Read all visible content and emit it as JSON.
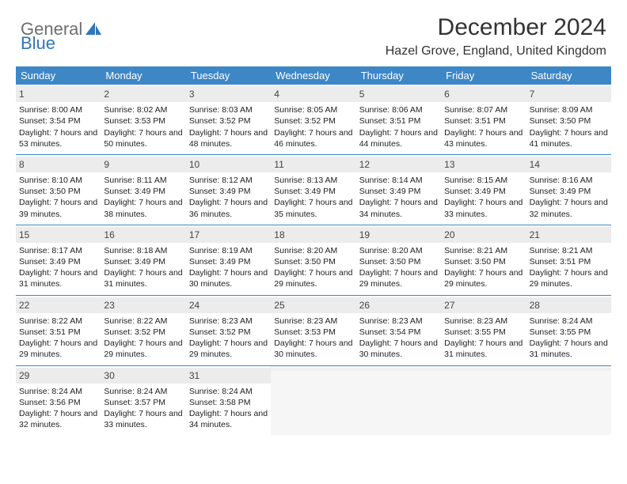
{
  "logo": {
    "text1": "General",
    "text2": "Blue"
  },
  "title": "December 2024",
  "location": "Hazel Grove, England, United Kingdom",
  "colors": {
    "header_bg": "#3d87c7",
    "header_text": "#ffffff",
    "daynum_bg": "#ececec",
    "border": "#3d87c7",
    "logo_gray": "#6e6e6e",
    "logo_blue": "#2f77b8"
  },
  "day_names": [
    "Sunday",
    "Monday",
    "Tuesday",
    "Wednesday",
    "Thursday",
    "Friday",
    "Saturday"
  ],
  "weeks": [
    [
      {
        "n": "1",
        "sr": "8:00 AM",
        "ss": "3:54 PM",
        "dl": "7 hours and 53 minutes."
      },
      {
        "n": "2",
        "sr": "8:02 AM",
        "ss": "3:53 PM",
        "dl": "7 hours and 50 minutes."
      },
      {
        "n": "3",
        "sr": "8:03 AM",
        "ss": "3:52 PM",
        "dl": "7 hours and 48 minutes."
      },
      {
        "n": "4",
        "sr": "8:05 AM",
        "ss": "3:52 PM",
        "dl": "7 hours and 46 minutes."
      },
      {
        "n": "5",
        "sr": "8:06 AM",
        "ss": "3:51 PM",
        "dl": "7 hours and 44 minutes."
      },
      {
        "n": "6",
        "sr": "8:07 AM",
        "ss": "3:51 PM",
        "dl": "7 hours and 43 minutes."
      },
      {
        "n": "7",
        "sr": "8:09 AM",
        "ss": "3:50 PM",
        "dl": "7 hours and 41 minutes."
      }
    ],
    [
      {
        "n": "8",
        "sr": "8:10 AM",
        "ss": "3:50 PM",
        "dl": "7 hours and 39 minutes."
      },
      {
        "n": "9",
        "sr": "8:11 AM",
        "ss": "3:49 PM",
        "dl": "7 hours and 38 minutes."
      },
      {
        "n": "10",
        "sr": "8:12 AM",
        "ss": "3:49 PM",
        "dl": "7 hours and 36 minutes."
      },
      {
        "n": "11",
        "sr": "8:13 AM",
        "ss": "3:49 PM",
        "dl": "7 hours and 35 minutes."
      },
      {
        "n": "12",
        "sr": "8:14 AM",
        "ss": "3:49 PM",
        "dl": "7 hours and 34 minutes."
      },
      {
        "n": "13",
        "sr": "8:15 AM",
        "ss": "3:49 PM",
        "dl": "7 hours and 33 minutes."
      },
      {
        "n": "14",
        "sr": "8:16 AM",
        "ss": "3:49 PM",
        "dl": "7 hours and 32 minutes."
      }
    ],
    [
      {
        "n": "15",
        "sr": "8:17 AM",
        "ss": "3:49 PM",
        "dl": "7 hours and 31 minutes."
      },
      {
        "n": "16",
        "sr": "8:18 AM",
        "ss": "3:49 PM",
        "dl": "7 hours and 31 minutes."
      },
      {
        "n": "17",
        "sr": "8:19 AM",
        "ss": "3:49 PM",
        "dl": "7 hours and 30 minutes."
      },
      {
        "n": "18",
        "sr": "8:20 AM",
        "ss": "3:50 PM",
        "dl": "7 hours and 29 minutes."
      },
      {
        "n": "19",
        "sr": "8:20 AM",
        "ss": "3:50 PM",
        "dl": "7 hours and 29 minutes."
      },
      {
        "n": "20",
        "sr": "8:21 AM",
        "ss": "3:50 PM",
        "dl": "7 hours and 29 minutes."
      },
      {
        "n": "21",
        "sr": "8:21 AM",
        "ss": "3:51 PM",
        "dl": "7 hours and 29 minutes."
      }
    ],
    [
      {
        "n": "22",
        "sr": "8:22 AM",
        "ss": "3:51 PM",
        "dl": "7 hours and 29 minutes."
      },
      {
        "n": "23",
        "sr": "8:22 AM",
        "ss": "3:52 PM",
        "dl": "7 hours and 29 minutes."
      },
      {
        "n": "24",
        "sr": "8:23 AM",
        "ss": "3:52 PM",
        "dl": "7 hours and 29 minutes."
      },
      {
        "n": "25",
        "sr": "8:23 AM",
        "ss": "3:53 PM",
        "dl": "7 hours and 30 minutes."
      },
      {
        "n": "26",
        "sr": "8:23 AM",
        "ss": "3:54 PM",
        "dl": "7 hours and 30 minutes."
      },
      {
        "n": "27",
        "sr": "8:23 AM",
        "ss": "3:55 PM",
        "dl": "7 hours and 31 minutes."
      },
      {
        "n": "28",
        "sr": "8:24 AM",
        "ss": "3:55 PM",
        "dl": "7 hours and 31 minutes."
      }
    ],
    [
      {
        "n": "29",
        "sr": "8:24 AM",
        "ss": "3:56 PM",
        "dl": "7 hours and 32 minutes."
      },
      {
        "n": "30",
        "sr": "8:24 AM",
        "ss": "3:57 PM",
        "dl": "7 hours and 33 minutes."
      },
      {
        "n": "31",
        "sr": "8:24 AM",
        "ss": "3:58 PM",
        "dl": "7 hours and 34 minutes."
      },
      {
        "empty": true
      },
      {
        "empty": true
      },
      {
        "empty": true
      },
      {
        "empty": true
      }
    ]
  ],
  "labels": {
    "sunrise": "Sunrise:",
    "sunset": "Sunset:",
    "daylight": "Daylight:"
  }
}
